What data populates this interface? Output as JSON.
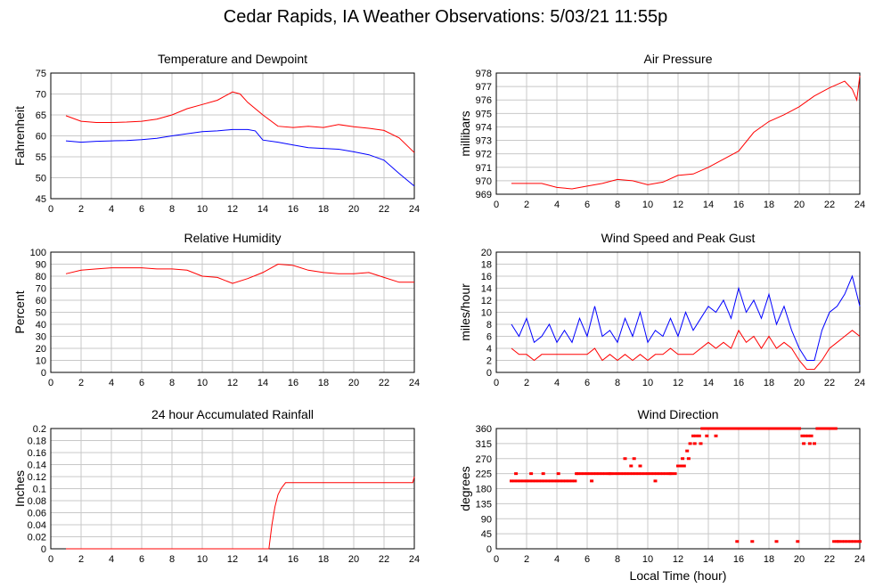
{
  "title": "Cedar Rapids, IA Weather Observations: 5/03/21 11:55p",
  "colors": {
    "red": "#ff0000",
    "blue": "#0000ff",
    "grid": "#c8c8c8",
    "frame": "#000000"
  },
  "chart_data": [
    {
      "id": "temp",
      "type": "line",
      "title": "Temperature and Dewpoint",
      "ylabel": "Fahrenheit",
      "xlabel": "",
      "xlim": [
        0,
        24
      ],
      "ylim": [
        45,
        75
      ],
      "yticks": [
        45,
        50,
        55,
        60,
        65,
        70,
        75
      ],
      "xticks": [
        0,
        2,
        4,
        6,
        8,
        10,
        12,
        14,
        16,
        18,
        20,
        22,
        24
      ],
      "grid": true,
      "series": [
        {
          "color": "#ff0000",
          "x": [
            1,
            2,
            3,
            4,
            5,
            6,
            7,
            8,
            9,
            10,
            11,
            12,
            12.5,
            13,
            14,
            15,
            16,
            17,
            18,
            19,
            20,
            21,
            22,
            23,
            24
          ],
          "y": [
            64.8,
            63.5,
            63.2,
            63.2,
            63.3,
            63.5,
            64,
            65,
            66.5,
            67.5,
            68.5,
            70.5,
            70,
            68,
            65,
            62.3,
            62,
            62.3,
            62,
            62.7,
            62.2,
            61.8,
            61.3,
            59.5,
            56
          ]
        },
        {
          "color": "#0000ff",
          "x": [
            1,
            2,
            3,
            4,
            5,
            6,
            7,
            8,
            9,
            10,
            11,
            12,
            13,
            13.5,
            14,
            15,
            16,
            17,
            18,
            19,
            20,
            21,
            22,
            23,
            24
          ],
          "y": [
            58.8,
            58.5,
            58.7,
            58.8,
            58.9,
            59.1,
            59.4,
            60,
            60.5,
            61,
            61.2,
            61.5,
            61.5,
            61.2,
            59,
            58.5,
            57.8,
            57.2,
            57,
            56.8,
            56.2,
            55.5,
            54.2,
            51,
            48
          ]
        }
      ]
    },
    {
      "id": "pressure",
      "type": "line",
      "title": "Air Pressure",
      "ylabel": "millibars",
      "xlabel": "",
      "xlim": [
        0,
        24
      ],
      "ylim": [
        969,
        978
      ],
      "yticks": [
        969,
        970,
        971,
        972,
        973,
        974,
        975,
        976,
        977,
        978
      ],
      "xticks": [
        0,
        2,
        4,
        6,
        8,
        10,
        12,
        14,
        16,
        18,
        20,
        22,
        24
      ],
      "grid": true,
      "series": [
        {
          "color": "#ff0000",
          "x": [
            1,
            2,
            3,
            4,
            5,
            6,
            7,
            8,
            9,
            10,
            11,
            12,
            13,
            14,
            15,
            16,
            17,
            18,
            19,
            20,
            21,
            22,
            23,
            23.5,
            23.8,
            24
          ],
          "y": [
            969.8,
            969.8,
            969.8,
            969.5,
            969.4,
            969.6,
            969.8,
            970.1,
            970.0,
            969.7,
            969.9,
            970.4,
            970.5,
            971.0,
            971.6,
            972.2,
            973.6,
            974.4,
            974.9,
            975.5,
            976.3,
            976.9,
            977.4,
            976.8,
            976.0,
            977.8
          ]
        }
      ]
    },
    {
      "id": "humidity",
      "type": "line",
      "title": "Relative Humidity",
      "ylabel": "Percent",
      "xlabel": "",
      "xlim": [
        0,
        24
      ],
      "ylim": [
        0,
        100
      ],
      "yticks": [
        0,
        10,
        20,
        30,
        40,
        50,
        60,
        70,
        80,
        90,
        100
      ],
      "xticks": [
        0,
        2,
        4,
        6,
        8,
        10,
        12,
        14,
        16,
        18,
        20,
        22,
        24
      ],
      "grid": true,
      "series": [
        {
          "color": "#ff0000",
          "x": [
            1,
            2,
            3,
            4,
            5,
            6,
            7,
            8,
            9,
            10,
            11,
            12,
            13,
            14,
            15,
            16,
            17,
            18,
            19,
            20,
            21,
            22,
            23,
            24
          ],
          "y": [
            82,
            85,
            86,
            87,
            87,
            87,
            86,
            86,
            85,
            80,
            79,
            74,
            78,
            83,
            90,
            89,
            85,
            83,
            82,
            82,
            83,
            79,
            75,
            75
          ]
        }
      ]
    },
    {
      "id": "wind",
      "type": "line",
      "title": "Wind Speed and Peak Gust",
      "ylabel": "miles/hour",
      "xlabel": "",
      "xlim": [
        0,
        24
      ],
      "ylim": [
        0,
        20
      ],
      "yticks": [
        0,
        2,
        4,
        6,
        8,
        10,
        12,
        14,
        16,
        18,
        20
      ],
      "xticks": [
        0,
        2,
        4,
        6,
        8,
        10,
        12,
        14,
        16,
        18,
        20,
        22,
        24
      ],
      "grid": true,
      "series": [
        {
          "color": "#0000ff",
          "x": [
            1,
            1.5,
            2,
            2.5,
            3,
            3.5,
            4,
            4.5,
            5,
            5.5,
            6,
            6.5,
            7,
            7.5,
            8,
            8.5,
            9,
            9.5,
            10,
            10.5,
            11,
            11.5,
            12,
            12.5,
            13,
            13.5,
            14,
            14.5,
            15,
            15.5,
            16,
            16.5,
            17,
            17.5,
            18,
            18.5,
            19,
            19.5,
            20,
            20.5,
            21,
            21.5,
            22,
            22.5,
            23,
            23.5,
            24
          ],
          "y": [
            8,
            6,
            9,
            5,
            6,
            8,
            5,
            7,
            5,
            9,
            6,
            11,
            6,
            7,
            5,
            9,
            6,
            10,
            5,
            7,
            6,
            9,
            6,
            10,
            7,
            9,
            11,
            10,
            12,
            9,
            14,
            10,
            12,
            9,
            13,
            8,
            11,
            7,
            4,
            2,
            2,
            7,
            10,
            11,
            13,
            16,
            11
          ]
        },
        {
          "color": "#ff0000",
          "x": [
            1,
            1.5,
            2,
            2.5,
            3,
            3.5,
            4,
            4.5,
            5,
            5.5,
            6,
            6.5,
            7,
            7.5,
            8,
            8.5,
            9,
            9.5,
            10,
            10.5,
            11,
            11.5,
            12,
            12.5,
            13,
            13.5,
            14,
            14.5,
            15,
            15.5,
            16,
            16.5,
            17,
            17.5,
            18,
            18.5,
            19,
            19.5,
            20,
            20.5,
            21,
            21.5,
            22,
            22.5,
            23,
            23.5,
            24
          ],
          "y": [
            4,
            3,
            3,
            2,
            3,
            3,
            3,
            3,
            3,
            3,
            3,
            4,
            2,
            3,
            2,
            3,
            2,
            3,
            2,
            3,
            3,
            4,
            3,
            3,
            3,
            4,
            5,
            4,
            5,
            4,
            7,
            5,
            6,
            4,
            6,
            4,
            5,
            4,
            2,
            0.5,
            0.5,
            2,
            4,
            5,
            6,
            7,
            6
          ]
        }
      ]
    },
    {
      "id": "rain",
      "type": "line",
      "title": "24 hour Accumulated Rainfall",
      "ylabel": "Inches",
      "xlabel": "",
      "xlim": [
        0,
        24
      ],
      "ylim": [
        0,
        0.2
      ],
      "yticks": [
        0,
        0.02,
        0.04,
        0.06,
        0.08,
        0.1,
        0.12,
        0.14,
        0.16,
        0.18,
        0.2
      ],
      "xticks": [
        0,
        2,
        4,
        6,
        8,
        10,
        12,
        14,
        16,
        18,
        20,
        22,
        24
      ],
      "grid": true,
      "series": [
        {
          "color": "#ff0000",
          "x": [
            1,
            14.4,
            14.6,
            14.8,
            15.0,
            15.2,
            15.5,
            16,
            20,
            23.9,
            24
          ],
          "y": [
            0,
            0,
            0.04,
            0.07,
            0.09,
            0.1,
            0.11,
            0.11,
            0.11,
            0.11,
            0.12
          ]
        }
      ]
    },
    {
      "id": "direction",
      "type": "scatter",
      "title": "Wind Direction",
      "ylabel": "degrees",
      "xlabel": "Local Time (hour)",
      "xlim": [
        0,
        24
      ],
      "ylim": [
        0,
        360
      ],
      "yticks": [
        0,
        45,
        90,
        135,
        180,
        225,
        270,
        315,
        360
      ],
      "xticks": [
        0,
        2,
        4,
        6,
        8,
        10,
        12,
        14,
        16,
        18,
        20,
        22,
        24
      ],
      "grid": true,
      "series": [
        {
          "color": "#ff0000",
          "x": [
            1.0,
            1.2,
            1.4,
            1.6,
            1.8,
            2.0,
            2.2,
            2.4,
            2.6,
            2.8,
            3.0,
            3.2,
            3.4,
            3.6,
            3.8,
            4.0,
            4.2,
            4.4,
            4.6,
            4.8,
            5.0,
            5.2,
            5.4,
            5.6,
            5.8,
            6.0,
            6.2,
            6.4,
            6.6,
            6.8,
            7.0,
            7.2,
            7.4,
            7.6,
            7.8,
            8.0,
            8.2,
            8.4,
            8.6,
            8.8,
            9.0,
            9.2,
            9.4,
            9.6,
            9.8,
            10.0,
            10.2,
            10.4,
            10.6,
            10.8,
            11.0,
            11.2,
            11.4,
            11.6,
            11.8,
            12.0,
            12.2,
            12.4,
            12.6,
            12.8,
            13.0,
            13.2,
            13.4,
            13.6,
            13.8,
            14.0,
            14.2,
            14.4,
            14.6,
            14.8,
            15.0,
            15.2,
            15.4,
            15.6,
            15.8,
            16.0,
            16.2,
            16.4,
            16.6,
            16.8,
            17.0,
            17.2,
            17.4,
            17.6,
            17.8,
            18.0,
            18.2,
            18.4,
            18.6,
            18.8,
            19.0,
            19.2,
            19.4,
            19.6,
            19.8,
            20.0,
            20.2,
            20.4,
            20.6,
            20.8,
            21.0,
            21.2,
            21.4,
            21.6,
            21.8,
            22.0,
            22.2,
            22.4,
            22.6,
            22.8,
            23.0,
            23.2,
            23.4,
            23.6,
            23.8,
            24.0,
            1.3,
            2.3,
            3.1,
            4.1,
            5.3,
            6.3,
            7.5,
            8.5,
            8.9,
            9.1,
            9.5,
            10.5,
            11.5,
            12.3,
            12.7,
            13.1,
            13.5,
            13.9,
            14.5,
            15.9,
            16.9,
            18.5,
            19.9,
            20.3,
            20.7,
            22.3,
            22.5
          ],
          "y": [
            203,
            203,
            203,
            203,
            203,
            203,
            203,
            203,
            203,
            203,
            203,
            203,
            203,
            203,
            203,
            203,
            203,
            203,
            203,
            203,
            203,
            203,
            225,
            225,
            225,
            225,
            225,
            225,
            225,
            225,
            225,
            225,
            225,
            225,
            225,
            225,
            225,
            225,
            225,
            225,
            225,
            225,
            225,
            225,
            225,
            225,
            225,
            225,
            225,
            225,
            225,
            225,
            225,
            225,
            225,
            248,
            248,
            248,
            293,
            315,
            338,
            338,
            338,
            360,
            360,
            360,
            360,
            360,
            360,
            360,
            360,
            360,
            360,
            360,
            360,
            360,
            360,
            360,
            360,
            360,
            360,
            360,
            360,
            360,
            360,
            360,
            360,
            360,
            360,
            360,
            360,
            360,
            360,
            360,
            360,
            360,
            338,
            338,
            338,
            338,
            315,
            360,
            360,
            360,
            360,
            360,
            360,
            360,
            22,
            22,
            22,
            22,
            22,
            22,
            22,
            22,
            225,
            225,
            225,
            225,
            225,
            203,
            225,
            270,
            248,
            270,
            248,
            203,
            225,
            270,
            270,
            315,
            315,
            338,
            338,
            22,
            22,
            22,
            22,
            315,
            315,
            22,
            22
          ]
        }
      ]
    }
  ]
}
